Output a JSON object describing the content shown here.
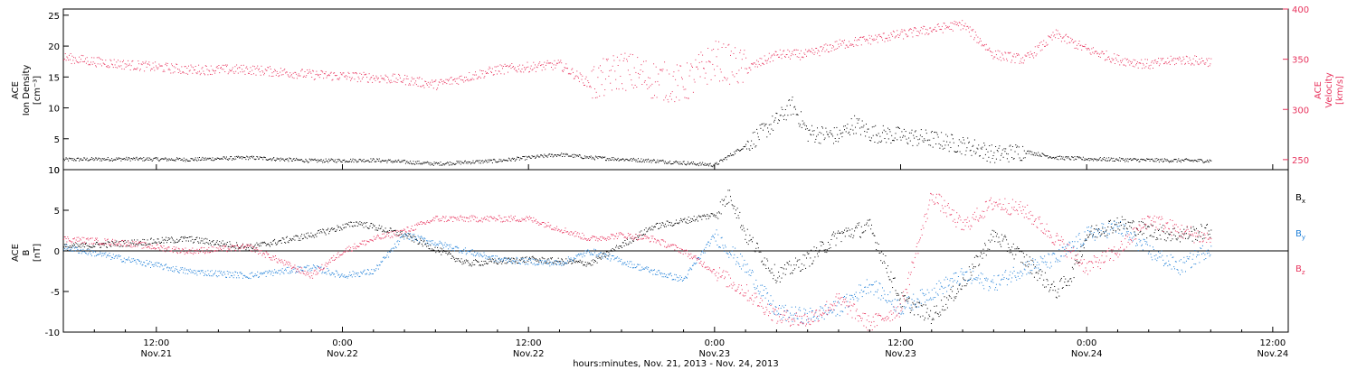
{
  "colors": {
    "density": "#000000",
    "velocity": "#e8345e",
    "bx": "#000000",
    "by": "#1e7fd8",
    "bz": "#e8345e"
  },
  "x_axis": {
    "ticks": [
      {
        "hour": 12,
        "time": "12:00",
        "date": "Nov.21"
      },
      {
        "hour": 24,
        "time": "0:00",
        "date": "Nov.22"
      },
      {
        "hour": 36,
        "time": "12:00",
        "date": "Nov.22"
      },
      {
        "hour": 48,
        "time": "0:00",
        "date": "Nov.23"
      },
      {
        "hour": 60,
        "time": "12:00",
        "date": "Nov.23"
      },
      {
        "hour": 72,
        "time": "0:00",
        "date": "Nov.24"
      },
      {
        "hour": 84,
        "time": "12:00",
        "date": "Nov.24"
      }
    ],
    "label": "hours:minutes, Nov. 21, 2013 - Nov. 24, 2013",
    "range": [
      6,
      85
    ]
  },
  "chart_data": [
    {
      "type": "scatter",
      "ylabel_left": [
        "ACE",
        "Ion Density",
        "[cm⁻³]"
      ],
      "ylabel_right": [
        "ACE",
        "Velocity",
        "[km/s]"
      ],
      "ylim_left": [
        0,
        26
      ],
      "ylim_right": [
        240,
        400
      ],
      "yticks_left": [
        0,
        5,
        10,
        15,
        20,
        25
      ],
      "yticks_right": [
        250,
        300,
        350,
        400
      ],
      "series": [
        {
          "key": "density",
          "axis": "left",
          "x": [
            6,
            10,
            14,
            18,
            22,
            26,
            30,
            34,
            38,
            40,
            44,
            48,
            50,
            52,
            53,
            54,
            56,
            57,
            58,
            60,
            62,
            64,
            65,
            66,
            68,
            70,
            72,
            76,
            80
          ],
          "y": [
            1.7,
            1.8,
            1.7,
            2.0,
            1.5,
            1.6,
            1.0,
            1.5,
            2.5,
            2.0,
            1.5,
            0.8,
            4.0,
            8.0,
            10.5,
            6.0,
            5.5,
            7.5,
            6.0,
            5.5,
            5.0,
            4.0,
            3.5,
            2.5,
            3.0,
            2.0,
            1.8,
            1.6,
            1.5
          ]
        },
        {
          "key": "velocity",
          "axis": "right",
          "x": [
            6,
            8,
            10,
            14,
            18,
            22,
            26,
            28,
            30,
            34,
            38,
            40,
            42,
            44,
            46,
            48,
            50,
            52,
            54,
            56,
            58,
            60,
            62,
            64,
            66,
            68,
            70,
            72,
            74,
            76,
            78,
            80
          ],
          "y": [
            352,
            348,
            345,
            340,
            340,
            335,
            332,
            330,
            325,
            340,
            345,
            325,
            340,
            330,
            325,
            350,
            340,
            355,
            355,
            365,
            370,
            375,
            380,
            385,
            355,
            350,
            375,
            360,
            350,
            345,
            350,
            348
          ]
        }
      ]
    },
    {
      "type": "scatter",
      "ylabel_left": [
        "ACE",
        "B",
        "[nT]"
      ],
      "ylim": [
        -10,
        10
      ],
      "yticks": [
        -10,
        -5,
        0,
        5,
        10
      ],
      "legend": [
        "Bx",
        "By",
        "Bz"
      ],
      "series": [
        {
          "key": "bx",
          "x": [
            6,
            10,
            14,
            18,
            22,
            25,
            28,
            32,
            36,
            40,
            44,
            48,
            49,
            50,
            52,
            54,
            56,
            58,
            60,
            62,
            64,
            66,
            68,
            70,
            71,
            72,
            74,
            76,
            78,
            80
          ],
          "y": [
            0.5,
            1.0,
            1.5,
            0.5,
            2.0,
            3.5,
            2.0,
            -1.5,
            -1.0,
            -1.5,
            3.0,
            4.5,
            7.0,
            2.0,
            -3.0,
            -1.0,
            2.0,
            3.0,
            -6.0,
            -8.0,
            -4.0,
            2.0,
            -1.0,
            -5.0,
            -3.0,
            2.0,
            3.5,
            2.5,
            2.0,
            2.5
          ]
        },
        {
          "key": "by",
          "x": [
            6,
            10,
            14,
            18,
            22,
            24,
            26,
            28,
            30,
            34,
            38,
            40,
            44,
            46,
            48,
            50,
            52,
            54,
            56,
            58,
            60,
            62,
            64,
            66,
            68,
            70,
            72,
            74,
            76,
            78,
            80
          ],
          "y": [
            0.5,
            -1.0,
            -2.5,
            -3.0,
            -2.0,
            -3.0,
            -2.5,
            2.0,
            1.0,
            -1.0,
            -1.5,
            0.0,
            -2.5,
            -3.5,
            2.0,
            -2.0,
            -7.5,
            -8.0,
            -7.0,
            -4.0,
            -7.0,
            -5.0,
            -3.0,
            -4.0,
            -2.0,
            -1.0,
            2.0,
            3.0,
            0.0,
            -2.0,
            0.5
          ]
        },
        {
          "key": "bz",
          "x": [
            6,
            10,
            14,
            18,
            22,
            24,
            26,
            28,
            30,
            32,
            36,
            40,
            42,
            44,
            46,
            48,
            50,
            52,
            54,
            56,
            58,
            60,
            62,
            64,
            66,
            68,
            70,
            72,
            74,
            76,
            78,
            80
          ],
          "y": [
            1.5,
            1.0,
            0.0,
            0.5,
            -3.0,
            0.0,
            1.5,
            2.5,
            4.0,
            4.0,
            4.0,
            1.5,
            2.0,
            1.5,
            0.0,
            -2.5,
            -5.0,
            -8.0,
            -8.5,
            -6.0,
            -9.0,
            -7.0,
            7.0,
            3.0,
            6.0,
            5.0,
            1.5,
            -2.0,
            0.0,
            4.0,
            2.5,
            1.5
          ]
        }
      ]
    }
  ]
}
